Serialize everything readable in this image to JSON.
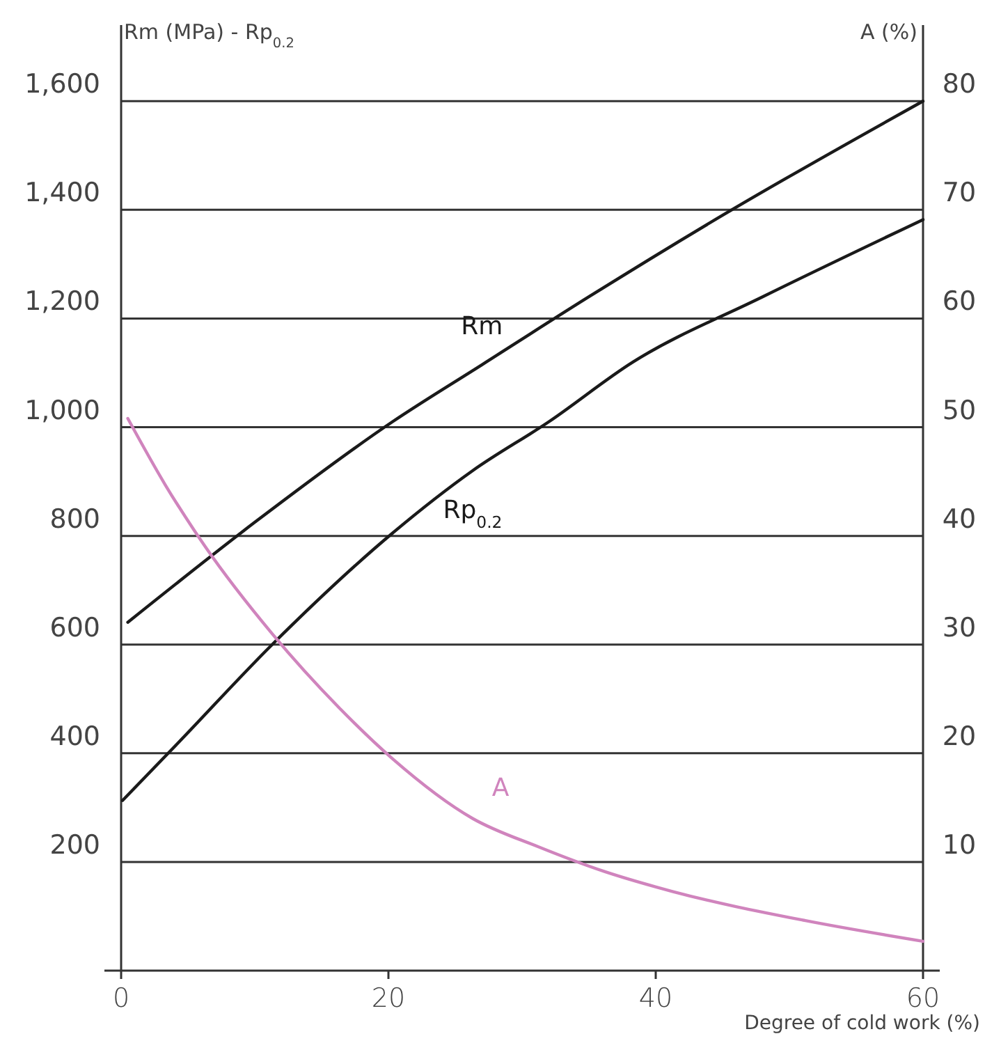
{
  "chart_data": {
    "type": "line",
    "xlabel": "Degree of cold work (%)",
    "ylabel": "Rm (MPa) - Rp$_{0.2}$",
    "y2label": "A (%)",
    "xlim": [
      0,
      60
    ],
    "xticks": [
      0,
      20,
      40,
      60
    ],
    "ylim": [
      0,
      1740
    ],
    "yticks": [
      {
        "value": 200,
        "label": "200"
      },
      {
        "value": 400,
        "label": "400"
      },
      {
        "value": 600,
        "label": "600"
      },
      {
        "value": 800,
        "label": "800"
      },
      {
        "value": 1000,
        "label": "1,000"
      },
      {
        "value": 1200,
        "label": "1,200"
      },
      {
        "value": 1400,
        "label": "1,400"
      },
      {
        "value": 1600,
        "label": "1,600"
      }
    ],
    "y2lim": [
      0,
      87
    ],
    "y2ticks": [
      10,
      20,
      30,
      40,
      50,
      60,
      70,
      80
    ],
    "grid": "y",
    "legend": false,
    "marker": "none",
    "line_style": "solid",
    "series": [
      {
        "name": "Rm",
        "color": "#1a1a1a",
        "x": [
          0.5,
          10,
          20.3,
          27,
          35,
          45,
          60
        ],
        "values": [
          641,
          825,
          1010,
          1115,
          1240,
          1390,
          1600
        ]
      },
      {
        "name": "Rp$_{0.2}$",
        "color": "#1a1a1a",
        "x": [
          0.1,
          4.3,
          11.3,
          20.3,
          26.3,
          32,
          38.3,
          48,
          60
        ],
        "values": [
          313,
          420,
          600,
          805,
          920,
          1010,
          1120,
          1240,
          1382
        ]
      },
      {
        "name": "A",
        "color": "#d084bd",
        "axis": "y2",
        "x": [
          0.5,
          3.3,
          6.3,
          11.3,
          16.3,
          20.3,
          26.3,
          31.2,
          36.2,
          41.2,
          51.2,
          60
        ],
        "values": [
          50.8,
          44.7,
          39,
          31,
          24.2,
          19.5,
          14,
          11.4,
          9.1,
          7.3,
          4.6,
          2.7
        ]
      }
    ]
  }
}
